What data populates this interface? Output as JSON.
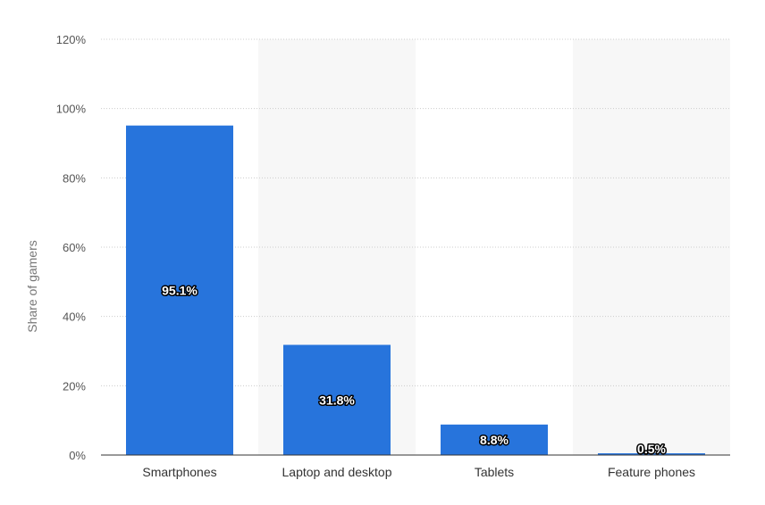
{
  "chart_data": {
    "type": "bar",
    "categories": [
      "Smartphones",
      "Laptop and desktop",
      "Tablets",
      "Feature phones"
    ],
    "series": [
      {
        "values": [
          95.1,
          31.8,
          8.8,
          0.5
        ]
      }
    ],
    "data_labels": [
      "95.1%",
      "31.8%",
      "8.8%",
      "0.5%"
    ],
    "ylabel": "Share of gamers",
    "xlabel": "",
    "ylim": [
      0,
      120
    ],
    "yticks": [
      0,
      20,
      40,
      60,
      80,
      100,
      120
    ],
    "ytick_labels": [
      "0%",
      "20%",
      "40%",
      "60%",
      "80%",
      "100%",
      "120%"
    ],
    "grid": true,
    "alternating_band_color": "#f7f7f7",
    "bar_color": "#2774dc",
    "axis_color": "#333333",
    "grid_color": "#cccccc"
  }
}
